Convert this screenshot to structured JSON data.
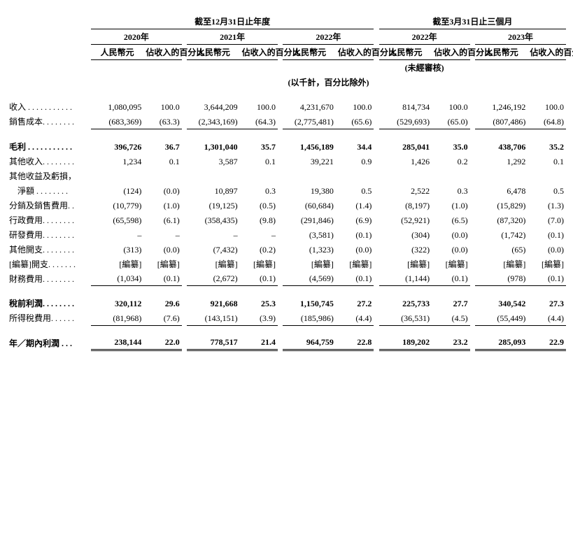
{
  "headers": {
    "period_year": "截至12月31日止年度",
    "period_quarter": "截至3月31日止三個月",
    "y2020": "2020年",
    "y2021": "2021年",
    "y2022": "2022年",
    "q2022": "2022年",
    "q2023": "2023年",
    "rmb": "人民幣元",
    "pct": "佔收入的百分比",
    "unaudited": "(未經審核)",
    "unit": "(以千計，百分比除外)"
  },
  "rows": {
    "revenue": {
      "label": "收入 . . . . . . . . . . .",
      "bold": false,
      "v": [
        "1,080,095",
        "100.0",
        "3,644,209",
        "100.0",
        "4,231,670",
        "100.0",
        "814,734",
        "100.0",
        "1,246,192",
        "100.0"
      ]
    },
    "cogs": {
      "label": "銷售成本. . . . . . . .",
      "bold": false,
      "v": [
        "(683,369)",
        "(63.3)",
        "(2,343,169)",
        "(64.3)",
        "(2,775,481)",
        "(65.6)",
        "(529,693)",
        "(65.0)",
        "(807,486)",
        "(64.8)"
      ]
    },
    "gross": {
      "label": "毛利 . . . . . . . . . . .",
      "bold": true,
      "v": [
        "396,726",
        "36.7",
        "1,301,040",
        "35.7",
        "1,456,189",
        "34.4",
        "285,041",
        "35.0",
        "438,706",
        "35.2"
      ]
    },
    "other_inc": {
      "label": "其他收入. . . . . . . .",
      "bold": false,
      "v": [
        "1,234",
        "0.1",
        "3,587",
        "0.1",
        "39,221",
        "0.9",
        "1,426",
        "0.2",
        "1,292",
        "0.1"
      ]
    },
    "other_gl_h": {
      "label": "其他收益及虧損，",
      "bold": false,
      "v": [
        "",
        "",
        "",
        "",
        "",
        "",
        "",
        "",
        "",
        ""
      ]
    },
    "other_gl": {
      "label": "　淨額 . . . . . . . .",
      "bold": false,
      "v": [
        "(124)",
        "(0.0)",
        "10,897",
        "0.3",
        "19,380",
        "0.5",
        "2,522",
        "0.3",
        "6,478",
        "0.5"
      ]
    },
    "sell_exp": {
      "label": "分銷及銷售費用. .",
      "bold": false,
      "v": [
        "(10,779)",
        "(1.0)",
        "(19,125)",
        "(0.5)",
        "(60,684)",
        "(1.4)",
        "(8,197)",
        "(1.0)",
        "(15,829)",
        "(1.3)"
      ]
    },
    "admin_exp": {
      "label": "行政費用. . . . . . . .",
      "bold": false,
      "v": [
        "(65,598)",
        "(6.1)",
        "(358,435)",
        "(9.8)",
        "(291,846)",
        "(6.9)",
        "(52,921)",
        "(6.5)",
        "(87,320)",
        "(7.0)"
      ]
    },
    "rd_exp": {
      "label": "研發費用. . . . . . . .",
      "bold": false,
      "v": [
        "–",
        "–",
        "–",
        "–",
        "(3,581)",
        "(0.1)",
        "(304)",
        "(0.0)",
        "(1,742)",
        "(0.1)"
      ]
    },
    "other_exp": {
      "label": "其他開支. . . . . . . .",
      "bold": false,
      "v": [
        "(313)",
        "(0.0)",
        "(7,432)",
        "(0.2)",
        "(1,323)",
        "(0.0)",
        "(322)",
        "(0.0)",
        "(65)",
        "(0.0)"
      ]
    },
    "redacted": {
      "label": "[編纂]開支. . . . . . .",
      "bold": false,
      "v": [
        "[編纂]",
        "[編纂]",
        "[編纂]",
        "[編纂]",
        "[編纂]",
        "[編纂]",
        "[編纂]",
        "[編纂]",
        "[編纂]",
        "[編纂]"
      ]
    },
    "fin_cost": {
      "label": "財務費用. . . . . . . .",
      "bold": false,
      "v": [
        "(1,034)",
        "(0.1)",
        "(2,672)",
        "(0.1)",
        "(4,569)",
        "(0.1)",
        "(1,144)",
        "(0.1)",
        "(978)",
        "(0.1)"
      ]
    },
    "pbt": {
      "label": "稅前利潤. . . . . . . .",
      "bold": true,
      "v": [
        "320,112",
        "29.6",
        "921,668",
        "25.3",
        "1,150,745",
        "27.2",
        "225,733",
        "27.7",
        "340,542",
        "27.3"
      ]
    },
    "tax": {
      "label": "所得稅費用. . . . . .",
      "bold": false,
      "v": [
        "(81,968)",
        "(7.6)",
        "(143,151)",
        "(3.9)",
        "(185,986)",
        "(4.4)",
        "(36,531)",
        "(4.5)",
        "(55,449)",
        "(4.4)"
      ]
    },
    "net": {
      "label": "年／期內利潤 . . .",
      "bold": true,
      "v": [
        "238,144",
        "22.0",
        "778,517",
        "21.4",
        "964,759",
        "22.8",
        "189,202",
        "23.2",
        "285,093",
        "22.9"
      ]
    }
  }
}
